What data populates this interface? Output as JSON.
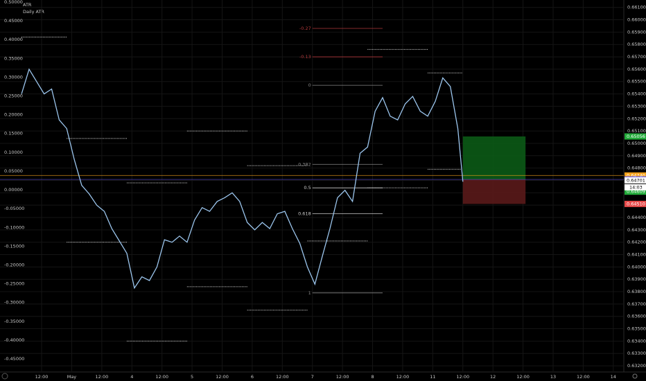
{
  "chart_data": {
    "type": "line",
    "title": "ATR",
    "subtitle": "Daily ATR",
    "x": [
      -8,
      -5,
      -2,
      1,
      4,
      7,
      10,
      13,
      16,
      19,
      22,
      25,
      28,
      31,
      34,
      37,
      40,
      43,
      46,
      49,
      52,
      55,
      58,
      61,
      64,
      67,
      70,
      73,
      76,
      79,
      82,
      85,
      88,
      91,
      94,
      97,
      100,
      103,
      106,
      109,
      112,
      115,
      118,
      121,
      124,
      127,
      130,
      133,
      136,
      139,
      142,
      145,
      148,
      151,
      154,
      157,
      160,
      163,
      166,
      168
    ],
    "values": [
      0.654,
      0.656,
      0.655,
      0.654,
      0.6544,
      0.6519,
      0.6512,
      0.6487,
      0.6466,
      0.6459,
      0.645,
      0.6445,
      0.6431,
      0.6421,
      0.6411,
      0.6383,
      0.6392,
      0.6389,
      0.64,
      0.6422,
      0.642,
      0.6425,
      0.642,
      0.6438,
      0.6448,
      0.6445,
      0.6453,
      0.6456,
      0.646,
      0.6453,
      0.6436,
      0.643,
      0.6436,
      0.6431,
      0.6443,
      0.6445,
      0.6431,
      0.6419,
      0.64,
      0.6386,
      0.6409,
      0.6431,
      0.6456,
      0.6462,
      0.6453,
      0.6492,
      0.6497,
      0.6526,
      0.6537,
      0.6522,
      0.6519,
      0.6532,
      0.6538,
      0.6526,
      0.6522,
      0.6534,
      0.6553,
      0.6546,
      0.6512,
      0.6469
    ],
    "color": "#9cc6ee",
    "xlim": [
      -16.6,
      232.2
    ],
    "xticks": [
      {
        "value": 0,
        "label": "12:00"
      },
      {
        "value": 12,
        "label": "May"
      },
      {
        "value": 24,
        "label": "12:00"
      },
      {
        "value": 36,
        "label": "4"
      },
      {
        "value": 48,
        "label": "12:00"
      },
      {
        "value": 60,
        "label": "5"
      },
      {
        "value": 72,
        "label": "12:00"
      },
      {
        "value": 84,
        "label": "6"
      },
      {
        "value": 96,
        "label": "12:00"
      },
      {
        "value": 108,
        "label": "7"
      },
      {
        "value": 120,
        "label": "12:00"
      },
      {
        "value": 132,
        "label": "8"
      },
      {
        "value": 144,
        "label": "12:00"
      },
      {
        "value": 156,
        "label": "11"
      },
      {
        "value": 168,
        "label": "12:00"
      },
      {
        "value": 180,
        "label": "12"
      },
      {
        "value": 192,
        "label": "12:00"
      },
      {
        "value": 204,
        "label": "13"
      },
      {
        "value": 216,
        "label": "12:00"
      },
      {
        "value": 228,
        "label": "14"
      }
    ],
    "ylim": [
      0.6315,
      0.6616
    ],
    "yticks": [
      {
        "value": 0.632,
        "label": "0.63200"
      },
      {
        "value": 0.633,
        "label": "0.63300"
      },
      {
        "value": 0.634,
        "label": "0.63400"
      },
      {
        "value": 0.635,
        "label": "0.63500"
      },
      {
        "value": 0.636,
        "label": "0.63600"
      },
      {
        "value": 0.637,
        "label": "0.63700"
      },
      {
        "value": 0.638,
        "label": "0.63800"
      },
      {
        "value": 0.639,
        "label": "0.63900"
      },
      {
        "value": 0.64,
        "label": "0.64000"
      },
      {
        "value": 0.641,
        "label": "0.64100"
      },
      {
        "value": 0.642,
        "label": "0.64200"
      },
      {
        "value": 0.643,
        "label": "0.64300"
      },
      {
        "value": 0.644,
        "label": "0.64400"
      },
      {
        "value": 0.645,
        "label": "0.64500"
      },
      {
        "value": 0.646,
        "label": "0.64600"
      },
      {
        "value": 0.647,
        "label": "0.64700"
      },
      {
        "value": 0.648,
        "label": "0.64800"
      },
      {
        "value": 0.649,
        "label": "0.64900"
      },
      {
        "value": 0.65,
        "label": "0.65000"
      },
      {
        "value": 0.651,
        "label": "0.65100"
      },
      {
        "value": 0.652,
        "label": "0.65200"
      },
      {
        "value": 0.653,
        "label": "0.65300"
      },
      {
        "value": 0.654,
        "label": "0.65400"
      },
      {
        "value": 0.655,
        "label": "0.65500"
      },
      {
        "value": 0.656,
        "label": "0.65600"
      },
      {
        "value": 0.657,
        "label": "0.65700"
      },
      {
        "value": 0.658,
        "label": "0.65800"
      },
      {
        "value": 0.659,
        "label": "0.65900"
      },
      {
        "value": 0.66,
        "label": "0.66000"
      },
      {
        "value": 0.661,
        "label": "0.66100"
      }
    ],
    "y2lim": [
      -0.485,
      0.5055
    ],
    "y2ticks": [
      {
        "value": 0.5,
        "label": "0.50000"
      },
      {
        "value": 0.45,
        "label": "0.45000"
      },
      {
        "value": 0.4,
        "label": "0.40000"
      },
      {
        "value": 0.35,
        "label": "0.35000"
      },
      {
        "value": 0.3,
        "label": "0.30000"
      },
      {
        "value": 0.25,
        "label": "0.25000"
      },
      {
        "value": 0.2,
        "label": "0.20000"
      },
      {
        "value": 0.15,
        "label": "0.15000"
      },
      {
        "value": 0.1,
        "label": "0.10000"
      },
      {
        "value": 0.05,
        "label": "0.05000"
      },
      {
        "value": 0,
        "label": "0.00000"
      },
      {
        "value": -0.05,
        "label": "-0.05000"
      },
      {
        "value": -0.1,
        "label": "-0.10000"
      },
      {
        "value": -0.15,
        "label": "-0.15000"
      },
      {
        "value": -0.2,
        "label": "-0.20000"
      },
      {
        "value": -0.25,
        "label": "-0.25000"
      },
      {
        "value": -0.3,
        "label": "-0.30000"
      },
      {
        "value": -0.35,
        "label": "-0.35000"
      },
      {
        "value": -0.4,
        "label": "-0.40000"
      },
      {
        "value": -0.45,
        "label": "-0.45000"
      }
    ],
    "grid": true,
    "levels": [
      {
        "x": [
          -8,
          10
        ],
        "y": 0.6586
      },
      {
        "x": [
          10,
          34
        ],
        "y": 0.6504
      },
      {
        "x": [
          10,
          34
        ],
        "y": 0.642
      },
      {
        "x": [
          34,
          58
        ],
        "y": 0.6468
      },
      {
        "x": [
          34,
          58
        ],
        "y": 0.634
      },
      {
        "x": [
          58,
          82
        ],
        "y": 0.651
      },
      {
        "x": [
          58,
          82
        ],
        "y": 0.6384
      },
      {
        "x": [
          82,
          106
        ],
        "y": 0.6482
      },
      {
        "x": [
          82,
          106
        ],
        "y": 0.6365
      },
      {
        "x": [
          106,
          130
        ],
        "y": 0.6421
      },
      {
        "x": [
          130,
          154
        ],
        "y": 0.6576
      },
      {
        "x": [
          130,
          154
        ],
        "y": 0.6464
      },
      {
        "x": [
          154,
          168
        ],
        "y": 0.6557
      },
      {
        "x": [
          154,
          168
        ],
        "y": 0.6479
      }
    ],
    "fib_range": [
      108,
      136
    ],
    "fib": [
      {
        "label": "-0.27",
        "value": 0.6593,
        "color": "#b2383a"
      },
      {
        "label": "-0.13",
        "value": 0.657,
        "color": "#b2383a"
      },
      {
        "label": "0",
        "value": 0.6547,
        "color": "#888888"
      },
      {
        "label": "0.382",
        "value": 0.6483,
        "color": "#888888"
      },
      {
        "label": "0.5",
        "value": 0.6464,
        "color": "#cccccc"
      },
      {
        "label": "0.618",
        "value": 0.6443,
        "color": "#cccccc"
      },
      {
        "label": "1",
        "value": 0.6379,
        "color": "#888888"
      }
    ],
    "position_x": [
      168,
      193
    ],
    "price_labels": [
      {
        "value": 0.65056,
        "label": "0.65056",
        "color": "#22ab3a"
      },
      {
        "value": 0.6474,
        "label": "0.64740",
        "color": "#f7a21b",
        "line": true
      },
      {
        "value": 0.64708,
        "label": "0.64708",
        "color": "#5b4fd6",
        "line": true
      },
      {
        "value": 0.64701,
        "label": "0.64701",
        "color": "#ffffff"
      },
      {
        "value": 0.64609,
        "label": "0.64609",
        "color": "#22ab3a"
      },
      {
        "value": 0.6451,
        "label": "0.64510",
        "color": "#e84a4a"
      }
    ],
    "countdown": "14:03"
  }
}
